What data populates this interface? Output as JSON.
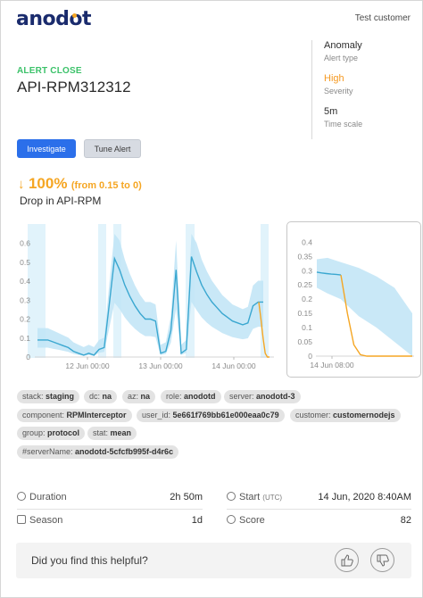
{
  "header": {
    "logo_text_1": "anod",
    "logo_text_2": "o",
    "logo_text_3": "t",
    "customer": "Test customer"
  },
  "alert": {
    "status": "ALERT CLOSE",
    "name": "API-RPM312312"
  },
  "meta": [
    {
      "value": "Anomaly",
      "label": "Alert type"
    },
    {
      "value": "High",
      "label": "Severity"
    },
    {
      "value": "5m",
      "label": "Time scale"
    }
  ],
  "buttons": {
    "investigate": "Investigate",
    "tune": "Tune Alert"
  },
  "change": {
    "arrow": "↓",
    "percent": "100%",
    "range": "(from 0.15 to 0)",
    "description": "Drop in API-RPM"
  },
  "colors": {
    "accent_blue": "#2b6fea",
    "status_green": "#3cc26a",
    "severity_orange": "#f59a23",
    "series_blue": "#3aa7d0",
    "band_blue": "#bfe4f6",
    "anomaly_orange": "#f5a623"
  },
  "chart_data": [
    {
      "type": "line",
      "yticks": [
        "0",
        "0.1",
        "0.2",
        "0.3",
        "0.4",
        "0.5",
        "0.6"
      ],
      "ylim": [
        0,
        0.65
      ],
      "xticks": [
        "12 Jun 00:00",
        "13 Jun 00:00",
        "14 Jun 00:00"
      ],
      "series": [
        {
          "values": [
            0.09,
            0.09,
            0.09,
            0.08,
            0.07,
            0.06,
            0.05,
            0.03,
            0.02,
            0.01,
            0.02,
            0.01,
            0.04,
            0.05,
            0.28,
            0.52,
            0.46,
            0.38,
            0.32,
            0.27,
            0.23,
            0.2,
            0.2,
            0.19,
            0.02,
            0.03,
            0.14,
            0.46,
            0.02,
            0.04,
            0.53,
            0.45,
            0.38,
            0.33,
            0.29,
            0.26,
            0.23,
            0.21,
            0.19,
            0.18,
            0.17,
            0.18,
            0.27,
            0.29,
            0.29
          ]
        }
      ],
      "anomaly_segment_values": [
        0.29,
        0.2,
        0.1,
        0.02,
        0.0,
        0.0
      ]
    },
    {
      "type": "line",
      "yticks": [
        "0",
        "0.05",
        "0.1",
        "0.15",
        "0.2",
        "0.25",
        "0.3",
        "0.35",
        "0.4"
      ],
      "ylim": [
        0,
        0.42
      ],
      "xticks": [
        "14 Jun 08:00"
      ],
      "series": [
        {
          "values": [
            0.295,
            0.292,
            0.29,
            0.288,
            0.287,
            0.285
          ]
        }
      ],
      "anomaly_segment_values": [
        0.285,
        0.15,
        0.04,
        0.005,
        0.0,
        0.0,
        0.0,
        0.0,
        0.0,
        0.0,
        0.0,
        0.0
      ]
    }
  ],
  "tags": [
    {
      "key": "stack:",
      "value": "staging"
    },
    {
      "key": "dc:",
      "value": "na"
    },
    {
      "key": "az:",
      "value": "na"
    },
    {
      "key": "role:",
      "value": "anodotd"
    },
    {
      "key": "server:",
      "value": "anodotd-3"
    },
    {
      "key": "component:",
      "value": "RPMInterceptor"
    },
    {
      "key": "user_id:",
      "value": "5e661f769bb61e000eaa0c79"
    },
    {
      "key": "customer:",
      "value": "customernodejs"
    },
    {
      "key": "group:",
      "value": "protocol"
    },
    {
      "key": "stat:",
      "value": "mean"
    },
    {
      "key": "#serverName:",
      "value": "anodotd-5cfcfb995f-d4r6c"
    }
  ],
  "stats": {
    "duration_label": "Duration",
    "duration_value": "2h 50m",
    "start_label": "Start",
    "start_utc": "(UTC)",
    "start_value": "14 Jun, 2020 8:40AM",
    "season_label": "Season",
    "season_value": "1d",
    "score_label": "Score",
    "score_value": "82"
  },
  "feedback": {
    "question": "Did you find this helpful?",
    "thumbs_up_icon": "thumbs-up-icon",
    "thumbs_down_icon": "thumbs-down-icon"
  }
}
